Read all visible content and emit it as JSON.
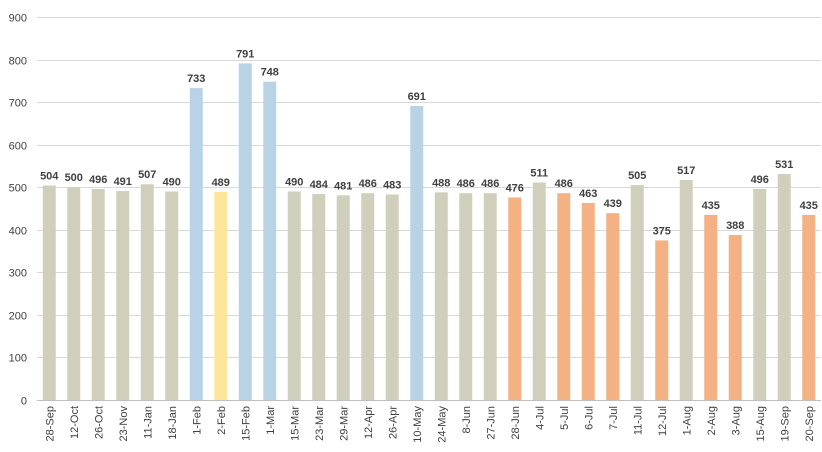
{
  "chart_data": {
    "type": "bar",
    "title": "",
    "xlabel": "",
    "ylabel": "",
    "ylim": [
      0,
      900
    ],
    "ytick_step": 100,
    "grid": true,
    "legend": "none",
    "data_labels": true,
    "colors": {
      "gray": "#d0cfbb",
      "blue": "#b9d3e6",
      "yellow": "#fde69a",
      "orange": "#f4b183"
    },
    "categories": [
      "28-Sep",
      "12-Oct",
      "26-Oct",
      "23-Nov",
      "11-Jan",
      "18-Jan",
      "1-Feb",
      "2-Feb",
      "15-Feb",
      "1-Mar",
      "15-Mar",
      "23-Mar",
      "29-Mar",
      "12-Apr",
      "26-Apr",
      "10-May",
      "24-May",
      "8-Jun",
      "27-Jun",
      "28-Jun",
      "4-Jul",
      "5-Jul",
      "6-Jul",
      "7-Jul",
      "11-Jul",
      "12-Jul",
      "1-Aug",
      "2-Aug",
      "3-Aug",
      "15-Aug",
      "19-Sep",
      "20-Sep"
    ],
    "values": [
      504,
      500,
      496,
      491,
      507,
      490,
      733,
      489,
      791,
      748,
      490,
      484,
      481,
      486,
      483,
      691,
      488,
      486,
      486,
      476,
      511,
      486,
      463,
      439,
      505,
      375,
      517,
      435,
      388,
      496,
      531,
      435
    ],
    "bar_colors": [
      "gray",
      "gray",
      "gray",
      "gray",
      "gray",
      "gray",
      "blue",
      "yellow",
      "blue",
      "blue",
      "gray",
      "gray",
      "gray",
      "gray",
      "gray",
      "blue",
      "gray",
      "gray",
      "gray",
      "orange",
      "gray",
      "orange",
      "orange",
      "orange",
      "gray",
      "orange",
      "gray",
      "orange",
      "orange",
      "gray",
      "gray",
      "orange"
    ]
  }
}
